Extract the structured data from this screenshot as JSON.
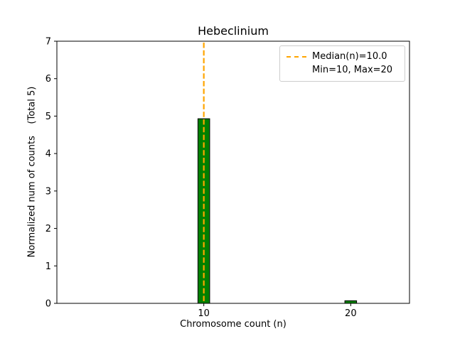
{
  "chart_data": {
    "type": "bar",
    "title": "Hebeclinium",
    "xlabel": "Chromosome count (n)",
    "ylabel": "Normalized num of counts    (Total 5)",
    "xlim": [
      0,
      24
    ],
    "ylim": [
      0,
      7
    ],
    "xticks": [
      10,
      20
    ],
    "yticks": [
      0,
      1,
      2,
      3,
      4,
      5,
      6,
      7
    ],
    "bars": [
      {
        "x": 10,
        "value": 4.93
      },
      {
        "x": 20,
        "value": 0.07
      }
    ],
    "bar_width": 0.8,
    "bar_color": "#008000",
    "bar_edge_color": "#000000",
    "median_line": {
      "x": 10,
      "color": "#ffa500",
      "style": "dashed"
    },
    "legend": {
      "position": "upper right",
      "entries": [
        "Median(n)=10.0",
        "Min=10, Max=20"
      ]
    },
    "grid": false
  }
}
